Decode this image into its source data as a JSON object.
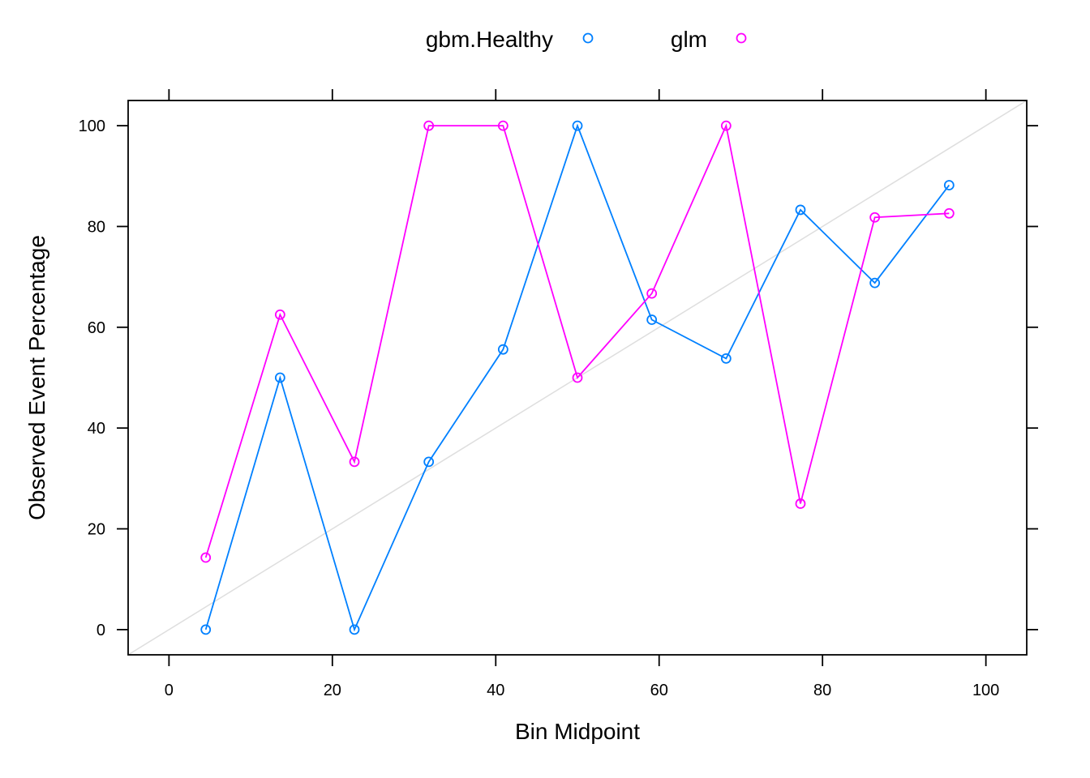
{
  "chart_data": {
    "type": "line",
    "xlabel": "Bin Midpoint",
    "ylabel": "Observed Event Percentage",
    "xlim": [
      -5,
      105
    ],
    "ylim": [
      -5,
      105
    ],
    "xticks": [
      0,
      20,
      40,
      60,
      80,
      100
    ],
    "yticks": [
      0,
      20,
      40,
      60,
      80,
      100
    ],
    "grid": false,
    "legend_position": "top",
    "reference_line": {
      "from": [
        -5,
        -5
      ],
      "to": [
        105,
        105
      ],
      "color": "#DEDEDE"
    },
    "series": [
      {
        "name": "gbm.Healthy",
        "color": "#0080FF",
        "marker": "open-circle",
        "x": [
          4.5,
          13.6,
          22.7,
          31.8,
          40.9,
          50.0,
          59.1,
          68.2,
          77.3,
          86.4,
          95.5
        ],
        "y": [
          0,
          50,
          0,
          33.3,
          55.6,
          100,
          61.5,
          53.8,
          83.3,
          68.8,
          88.2
        ]
      },
      {
        "name": "glm",
        "color": "#FF00FF",
        "marker": "open-circle",
        "x": [
          4.5,
          13.6,
          22.7,
          31.8,
          40.9,
          50.0,
          59.1,
          68.2,
          77.3,
          86.4,
          95.5
        ],
        "y": [
          14.3,
          62.5,
          33.3,
          100,
          100,
          50,
          66.7,
          100,
          25,
          81.8,
          82.6
        ]
      }
    ]
  }
}
